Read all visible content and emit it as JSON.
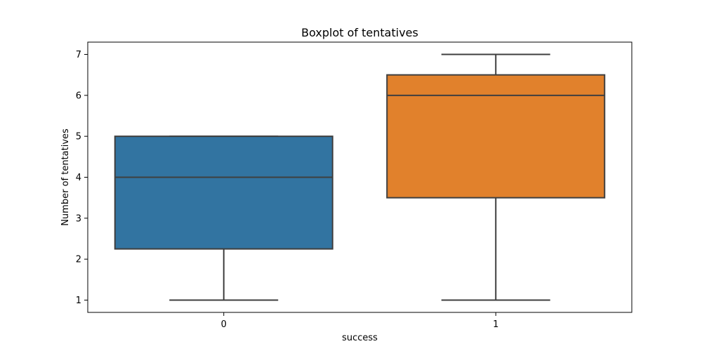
{
  "chart_data": {
    "type": "boxplot",
    "title": "Boxplot of tentatives",
    "xlabel": "success",
    "ylabel": "Number of tentatives",
    "categories": [
      "0",
      "1"
    ],
    "ylim": [
      0.7,
      7.3
    ],
    "yticks": [
      1,
      2,
      3,
      4,
      5,
      6,
      7
    ],
    "grid": false,
    "boxes": [
      {
        "category": "0",
        "whisker_low": 1,
        "q1": 2.25,
        "median": 4,
        "q3": 5,
        "whisker_high": 5,
        "color": "#3274a1"
      },
      {
        "category": "1",
        "whisker_low": 1,
        "q1": 3.5,
        "median": 6,
        "q3": 6.5,
        "whisker_high": 7,
        "color": "#e1812c"
      }
    ]
  }
}
